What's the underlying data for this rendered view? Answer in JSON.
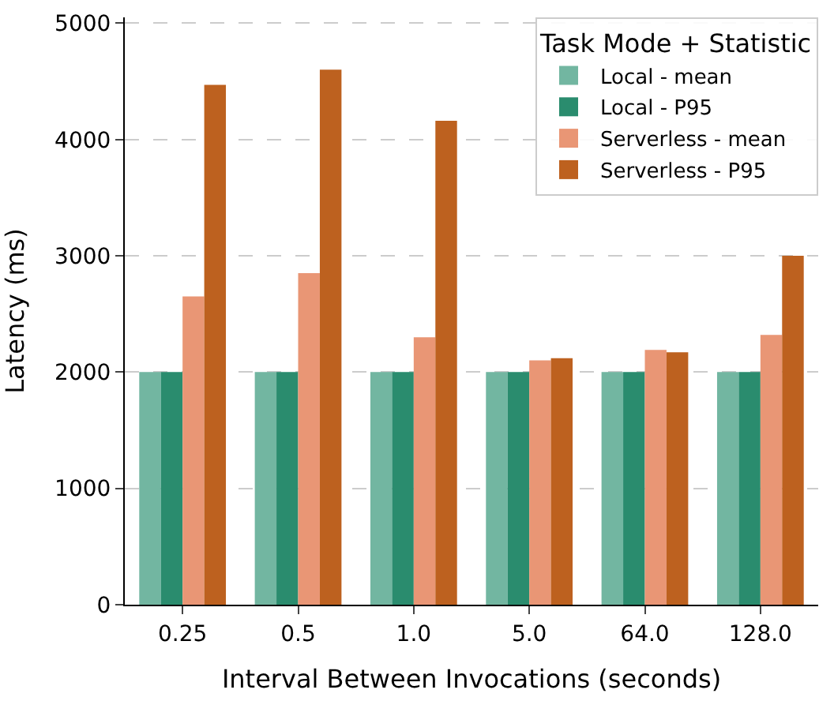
{
  "chart_data": {
    "type": "bar",
    "xlabel": "Interval Between Invocations (seconds)",
    "ylabel": "Latency (ms)",
    "legend_title": "Task Mode + Statistic",
    "legend": "top right",
    "grid": "y",
    "categories": [
      "0.25",
      "0.5",
      "1.0",
      "5.0",
      "64.0",
      "128.0"
    ],
    "ylim": [
      0,
      5050
    ],
    "yticks": [
      0,
      1000,
      2000,
      3000,
      4000,
      5000
    ],
    "series": [
      {
        "name": "Local - mean",
        "color": "#72b6a1",
        "values": [
          2000,
          2000,
          2000,
          2000,
          2000,
          2000
        ]
      },
      {
        "name": "Local - P95",
        "color": "#2a8c6e",
        "values": [
          2000,
          2000,
          2000,
          2000,
          2000,
          2000
        ]
      },
      {
        "name": "Serverless - mean",
        "color": "#e99675",
        "values": [
          2650,
          2850,
          2300,
          2100,
          2190,
          2320
        ]
      },
      {
        "name": "Serverless - P95",
        "color": "#bd611f",
        "values": [
          4470,
          4600,
          4160,
          2120,
          2170,
          3000
        ]
      }
    ]
  }
}
